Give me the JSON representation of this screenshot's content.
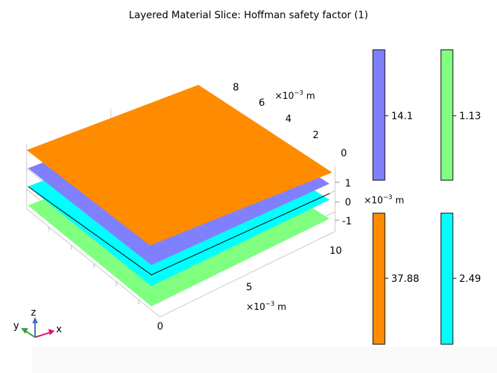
{
  "title": "Layered Material Slice: Hoffman safety factor (1)",
  "axes": {
    "y_ticks": [
      "8",
      "6",
      "4",
      "2",
      "0"
    ],
    "z_ticks": [
      "1",
      "0",
      "-1"
    ],
    "x_ticks": [
      "10",
      "5",
      "0"
    ],
    "unit_prefix": "×10",
    "unit_exp": "−3",
    "unit_suffix": " m"
  },
  "layers": [
    {
      "name": "top",
      "color": "#ff8c00"
    },
    {
      "name": "second",
      "color": "#8080ff"
    },
    {
      "name": "third",
      "color": "#00ffff"
    },
    {
      "name": "bottom",
      "color": "#80ff80"
    }
  ],
  "legends": [
    {
      "name": "purple",
      "value": "14.1",
      "color": "#8080ff"
    },
    {
      "name": "green",
      "value": "1.13",
      "color": "#80ff80"
    },
    {
      "name": "orange",
      "value": "37.88",
      "color": "#ff8c00"
    },
    {
      "name": "cyan",
      "value": "2.49",
      "color": "#00ffff"
    }
  ],
  "triad": {
    "x": "x",
    "y": "y",
    "z": "z",
    "x_color": "#d6176f",
    "y_color": "#3a9c3a",
    "z_color": "#3d6fbf"
  }
}
